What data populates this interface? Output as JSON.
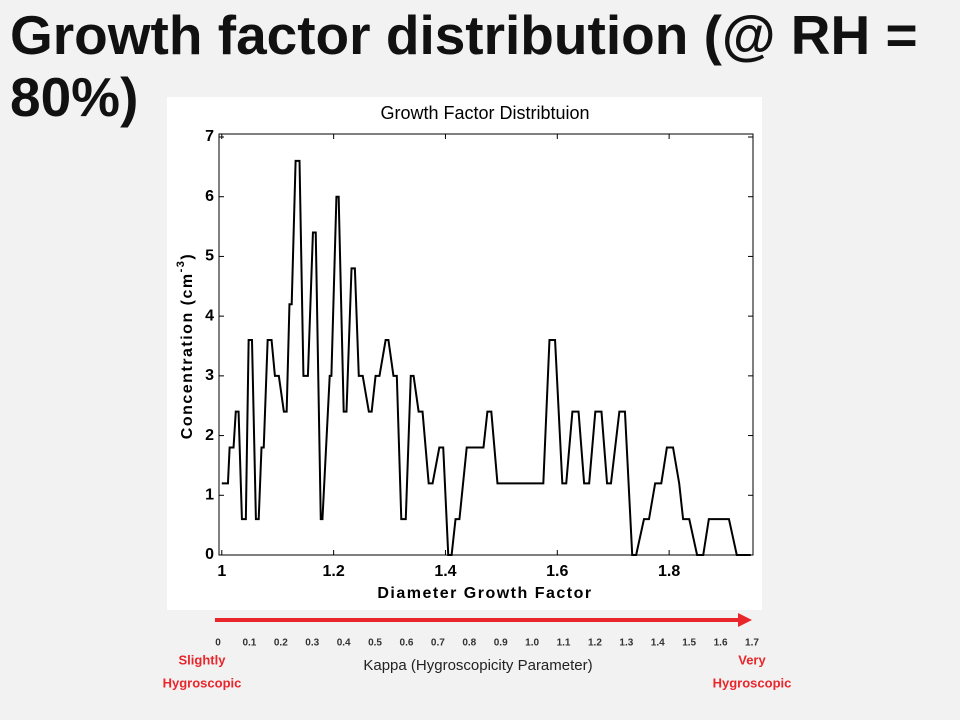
{
  "slide_title": "Growth factor distribution (@ RH = 80%)",
  "chart_data": {
    "type": "line",
    "title": "Growth Factor Distribtuion",
    "x_label": "Diameter Growth Factor",
    "y_label": "Concentration (cm",
    "y_label_sup": "-3",
    "y_label_end": ")",
    "x": [
      1.0,
      1.011,
      1.014,
      1.021,
      1.025,
      1.03,
      1.036,
      1.043,
      1.048,
      1.054,
      1.061,
      1.066,
      1.071,
      1.075,
      1.082,
      1.089,
      1.095,
      1.102,
      1.111,
      1.116,
      1.121,
      1.125,
      1.132,
      1.139,
      1.146,
      1.154,
      1.163,
      1.168,
      1.177,
      1.18,
      1.193,
      1.196,
      1.205,
      1.209,
      1.218,
      1.223,
      1.232,
      1.238,
      1.245,
      1.252,
      1.263,
      1.268,
      1.275,
      1.282,
      1.293,
      1.298,
      1.307,
      1.313,
      1.321,
      1.329,
      1.338,
      1.343,
      1.352,
      1.359,
      1.37,
      1.377,
      1.389,
      1.396,
      1.405,
      1.411,
      1.418,
      1.425,
      1.438,
      1.468,
      1.475,
      1.482,
      1.493,
      1.575,
      1.586,
      1.596,
      1.609,
      1.616,
      1.627,
      1.638,
      1.648,
      1.657,
      1.668,
      1.679,
      1.689,
      1.696,
      1.711,
      1.721,
      1.734,
      1.741,
      1.755,
      1.764,
      1.775,
      1.786,
      1.796,
      1.807,
      1.818,
      1.825,
      1.836,
      1.85,
      1.861,
      1.871,
      1.907,
      1.921,
      1.946
    ],
    "series": [
      {
        "color": "#000000",
        "values": [
          1.2,
          1.2,
          1.8,
          1.8,
          2.4,
          2.4,
          0.6,
          0.6,
          3.6,
          3.6,
          0.6,
          0.6,
          1.8,
          1.8,
          3.6,
          3.6,
          3.0,
          3.0,
          2.4,
          2.4,
          4.2,
          4.2,
          6.6,
          6.6,
          3.0,
          3.0,
          5.4,
          5.4,
          0.6,
          0.6,
          3.0,
          3.0,
          6.0,
          6.0,
          2.4,
          2.4,
          4.8,
          4.8,
          3.0,
          3.0,
          2.4,
          2.4,
          3.0,
          3.0,
          3.6,
          3.6,
          3.0,
          3.0,
          0.6,
          0.6,
          3.0,
          3.0,
          2.4,
          2.4,
          1.2,
          1.2,
          1.8,
          1.8,
          0,
          0,
          0.6,
          0.6,
          1.8,
          1.8,
          2.4,
          2.4,
          1.2,
          1.2,
          3.6,
          3.6,
          1.2,
          1.2,
          2.4,
          2.4,
          1.2,
          1.2,
          2.4,
          2.4,
          1.2,
          1.2,
          2.4,
          2.4,
          0,
          0,
          0.6,
          0.6,
          1.2,
          1.2,
          1.8,
          1.8,
          1.2,
          0.6,
          0.6,
          0,
          0,
          0.6,
          0.6,
          0,
          0
        ]
      }
    ],
    "xlim": [
      0.995,
      1.95
    ],
    "ylim": [
      0,
      7
    ],
    "xticks": [
      1,
      1.2,
      1.4,
      1.6,
      1.8
    ],
    "yticks": [
      0,
      1,
      2,
      3,
      4,
      5,
      6,
      7
    ]
  },
  "kappa_scale": {
    "labels": [
      "0",
      "0.1",
      "0.2",
      "0.3",
      "0.4",
      "0.5",
      "0.6",
      "0.7",
      "0.8",
      "0.9",
      "1.0",
      "1.1",
      "1.2",
      "1.3",
      "1.4",
      "1.5",
      "1.6",
      "1.7"
    ],
    "title": "Kappa (Hygroscopicity Parameter)",
    "left_note": [
      "Slightly",
      "Hygroscopic"
    ],
    "right_note": [
      "Very",
      "Hygroscopic"
    ]
  }
}
